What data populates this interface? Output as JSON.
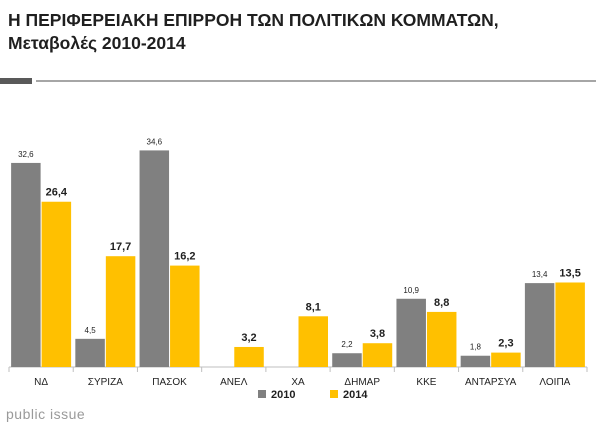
{
  "header": {
    "title_line1": "Η ΠΕΡΙΦΕΡΕΙΑΚΗ ΕΠΙΡΡΟΗ ΤΩΝ ΠΟΛΙΤΙΚΩΝ ΚΟΜΜΑΤΩΝ,",
    "title_line2": "Μεταβολές 2010-2014"
  },
  "watermark": "public issue",
  "chart_data": {
    "type": "bar",
    "categories": [
      "ΝΔ",
      "ΣΥΡΙΖΑ",
      "ΠΑΣΟΚ",
      "ΑΝΕΛ",
      "ΧΑ",
      "ΔΗΜΑΡ",
      "ΚΚΕ",
      "ΑΝΤΑΡΣΥΑ",
      "ΛΟΙΠΑ"
    ],
    "series": [
      {
        "name": "2010",
        "color": "#808080",
        "values": [
          32.6,
          4.5,
          34.6,
          null,
          null,
          2.2,
          10.9,
          1.8,
          13.4
        ],
        "labels": [
          "32,6",
          "4,5",
          "34,6",
          null,
          null,
          "2,2",
          "10,9",
          "1,8",
          "13,4"
        ]
      },
      {
        "name": "2014",
        "color": "#ffc000",
        "values": [
          26.4,
          17.7,
          16.2,
          3.2,
          8.1,
          3.8,
          8.8,
          2.3,
          13.5
        ],
        "labels": [
          "26,4",
          "17,7",
          "16,2",
          "3,2",
          "8,1",
          "3,8",
          "8,8",
          "2,3",
          "13,5"
        ]
      }
    ],
    "ylim": [
      0,
      36
    ],
    "legend_position": "bottom"
  }
}
